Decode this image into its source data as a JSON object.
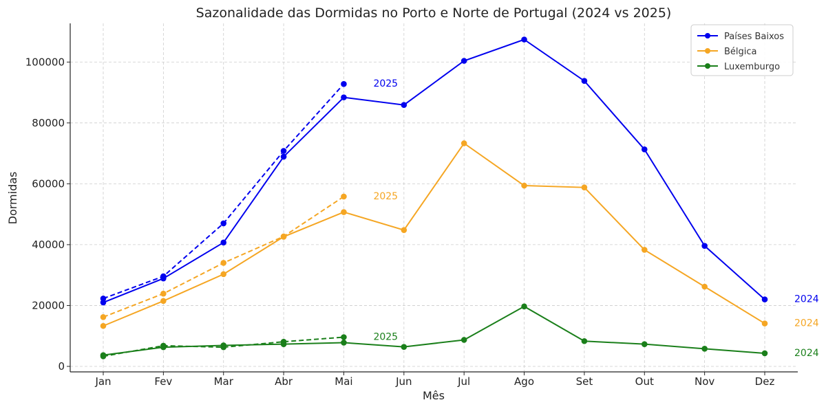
{
  "chart_data": {
    "type": "line",
    "title": "Sazonalidade das Dormidas no Porto e Norte de Portugal (2024 vs 2025)",
    "xlabel": "Mês",
    "ylabel": "Dormidas",
    "categories": [
      "Jan",
      "Fev",
      "Mar",
      "Abr",
      "Mai",
      "Jun",
      "Jul",
      "Ago",
      "Set",
      "Out",
      "Nov",
      "Dez"
    ],
    "ylim": [
      0,
      112000
    ],
    "yticks": [
      0,
      20000,
      40000,
      60000,
      80000,
      100000
    ],
    "grid": true,
    "legend_position": "top-right",
    "series": [
      {
        "name": "Países Baixos",
        "color": "#0000ee",
        "values_2024": [
          21000,
          28900,
          40700,
          68900,
          88400,
          85900,
          100400,
          107400,
          93800,
          71300,
          39600,
          22000
        ],
        "values_2025": [
          22300,
          29600,
          47000,
          70800,
          92800
        ],
        "label_2024": "2024",
        "label_2025": "2025"
      },
      {
        "name": "Bélgica",
        "color": "#f5a623",
        "values_2024": [
          13300,
          21500,
          30300,
          42600,
          50700,
          44800,
          73300,
          59400,
          58800,
          38300,
          26200,
          14100
        ],
        "values_2025": [
          16200,
          23900,
          34000,
          42700,
          55800
        ],
        "label_2024": "2024",
        "label_2025": "2025"
      },
      {
        "name": "Luxemburgo",
        "color": "#1a7f1a",
        "values_2024": [
          3700,
          6300,
          6900,
          7300,
          7800,
          6400,
          8700,
          19700,
          8300,
          7300,
          5800,
          4300
        ],
        "values_2025": [
          3300,
          6800,
          6300,
          8100,
          9600
        ],
        "label_2024": "2024",
        "label_2025": "2025"
      }
    ]
  }
}
